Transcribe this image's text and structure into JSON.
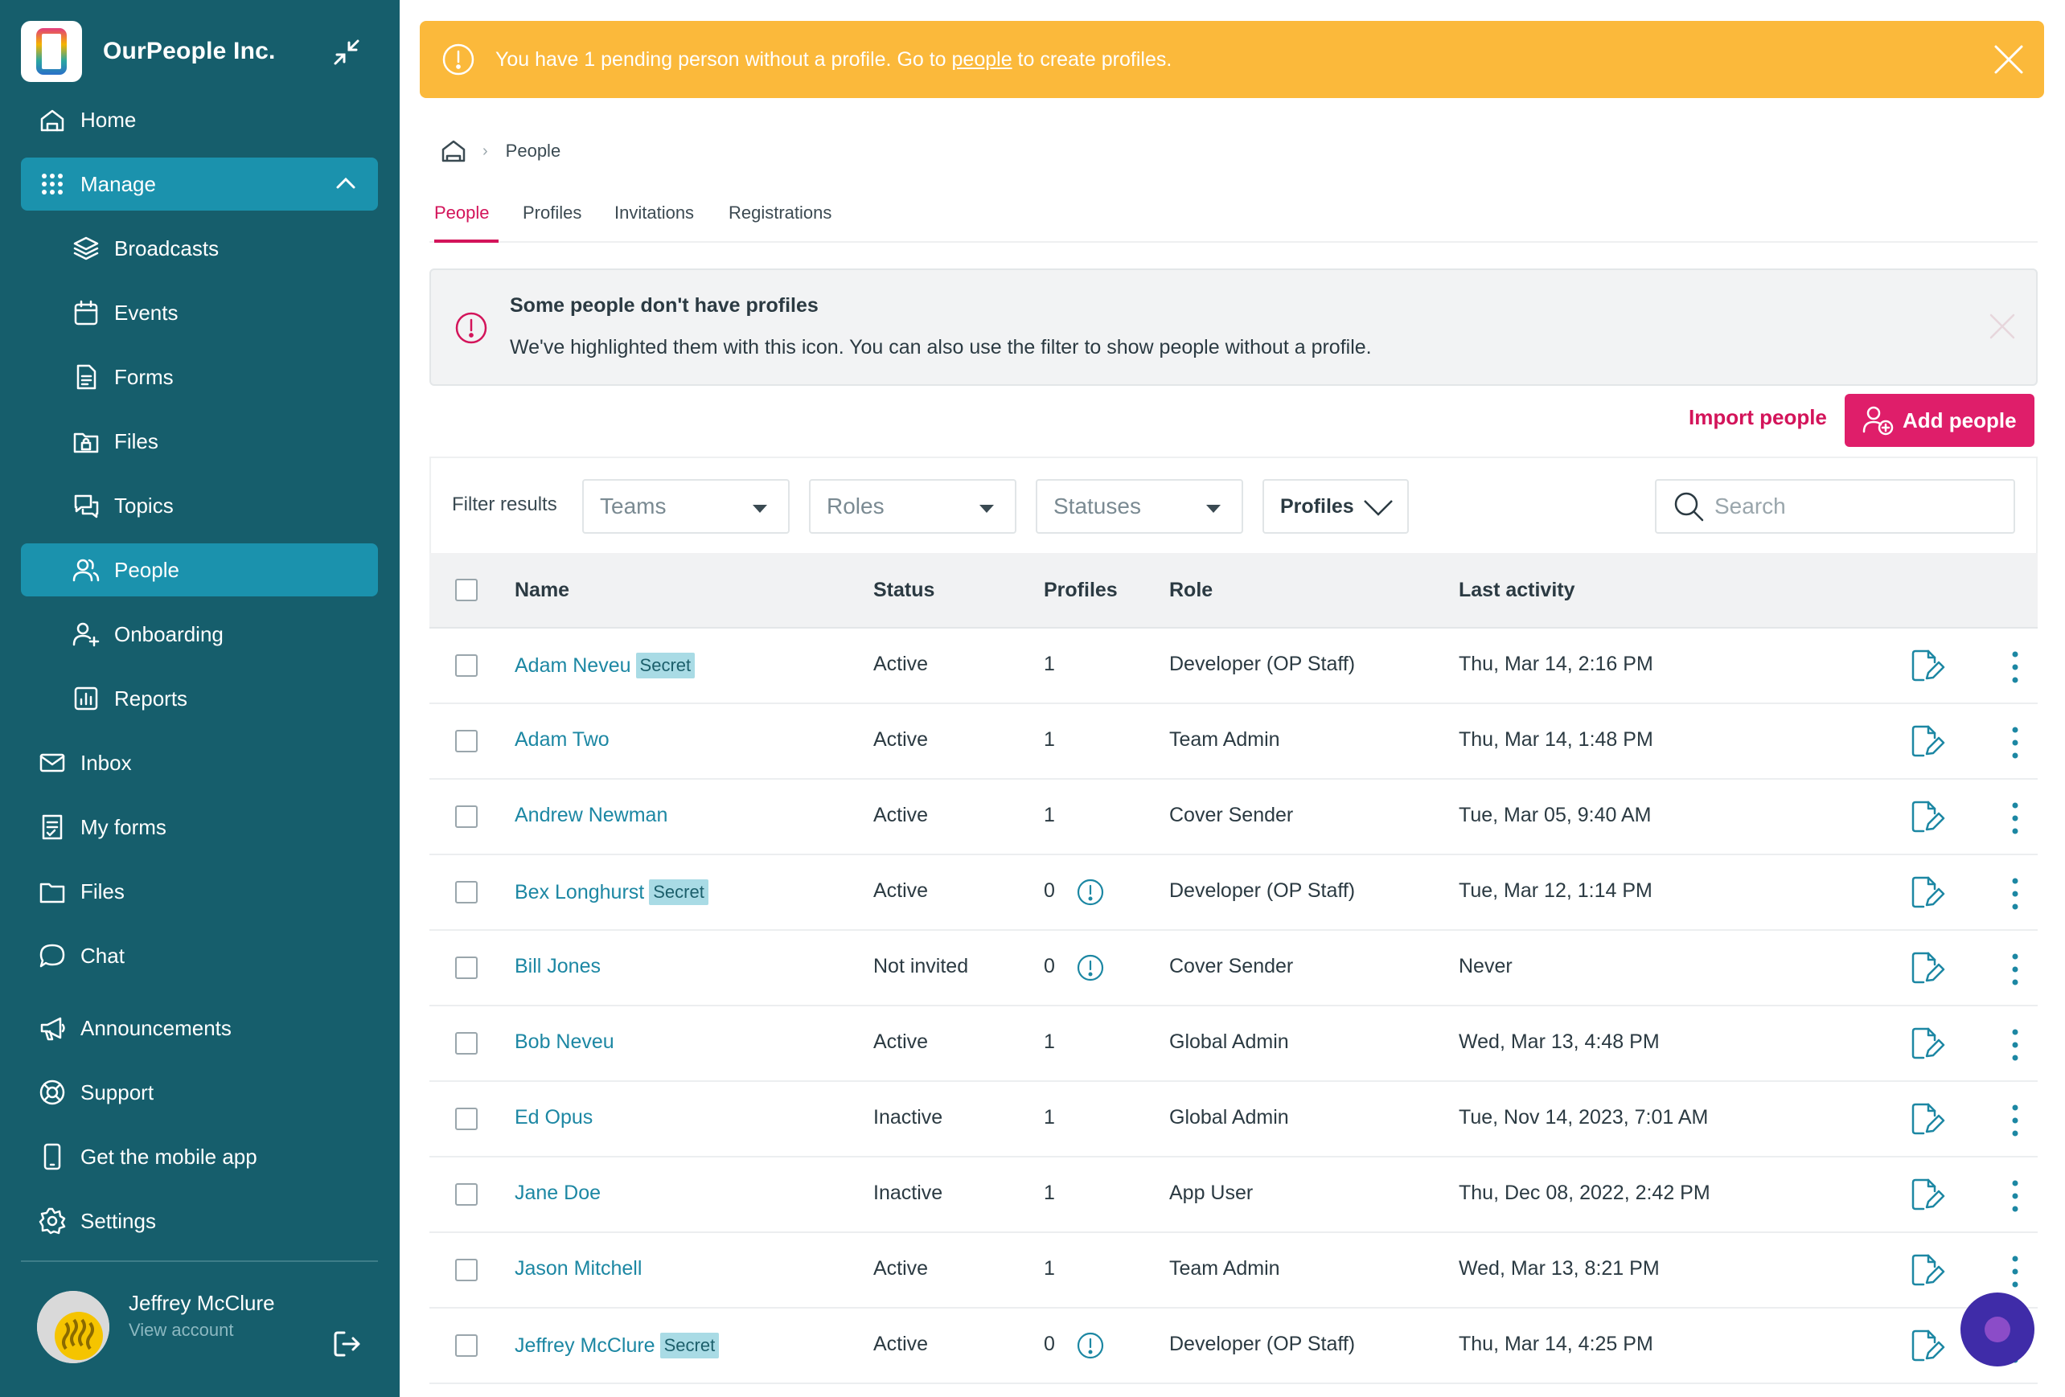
{
  "sidebar": {
    "org_name": "OurPeople Inc.",
    "nav": [
      {
        "label": "Home",
        "icon": "home-icon"
      },
      {
        "label": "Manage",
        "icon": "grid-icon"
      },
      {
        "label": "Broadcasts",
        "icon": "layers-icon"
      },
      {
        "label": "Events",
        "icon": "calendar-icon"
      },
      {
        "label": "Forms",
        "icon": "document-icon"
      },
      {
        "label": "Files",
        "icon": "folder-lock-icon"
      },
      {
        "label": "Topics",
        "icon": "chat-bubbles-icon"
      },
      {
        "label": "People",
        "icon": "people-icon"
      },
      {
        "label": "Onboarding",
        "icon": "user-plus-icon"
      },
      {
        "label": "Reports",
        "icon": "bar-chart-icon"
      },
      {
        "label": "Inbox",
        "icon": "mail-icon"
      },
      {
        "label": "My forms",
        "icon": "checklist-icon"
      },
      {
        "label": "Files",
        "icon": "folder-icon"
      },
      {
        "label": "Chat",
        "icon": "chat-icon"
      },
      {
        "label": "Announcements",
        "icon": "megaphone-icon"
      },
      {
        "label": "Support",
        "icon": "lifebuoy-icon"
      },
      {
        "label": "Get the mobile app",
        "icon": "phone-icon"
      },
      {
        "label": "Settings",
        "icon": "gear-icon"
      }
    ],
    "user": {
      "name": "Jeffrey McClure",
      "sub": "View account"
    }
  },
  "banner": {
    "text_before": "You have 1 pending person without a profile. Go to ",
    "link": "people",
    "text_after": " to create profiles."
  },
  "breadcrumb": {
    "current": "People"
  },
  "tabs": [
    "People",
    "Profiles",
    "Invitations",
    "Registrations"
  ],
  "alert": {
    "title": "Some people don't have profiles",
    "body": "We've highlighted them with this icon. You can also use the filter to show people without a profile."
  },
  "actions": {
    "import": "Import people",
    "add": "Add people"
  },
  "filters": {
    "label": "Filter results",
    "teams": "Teams",
    "roles": "Roles",
    "statuses": "Statuses",
    "profiles": "Profiles",
    "search_placeholder": "Search"
  },
  "table": {
    "headers": {
      "name": "Name",
      "status": "Status",
      "profiles": "Profiles",
      "role": "Role",
      "last_activity": "Last activity"
    },
    "rows": [
      {
        "name": "Adam Neveu",
        "secret": "Secret",
        "status": "Active",
        "profiles": "1",
        "warn": false,
        "role": "Developer (OP Staff)",
        "last": "Thu, Mar 14, 2:16 PM"
      },
      {
        "name": "Adam Two",
        "secret": "",
        "status": "Active",
        "profiles": "1",
        "warn": false,
        "role": "Team Admin",
        "last": "Thu, Mar 14, 1:48 PM"
      },
      {
        "name": "Andrew Newman",
        "secret": "",
        "status": "Active",
        "profiles": "1",
        "warn": false,
        "role": "Cover Sender",
        "last": "Tue, Mar 05, 9:40 AM"
      },
      {
        "name": "Bex Longhurst",
        "secret": "Secret",
        "status": "Active",
        "profiles": "0",
        "warn": true,
        "role": "Developer (OP Staff)",
        "last": "Tue, Mar 12, 1:14 PM"
      },
      {
        "name": "Bill Jones",
        "secret": "",
        "status": "Not invited",
        "profiles": "0",
        "warn": true,
        "role": "Cover Sender",
        "last": "Never"
      },
      {
        "name": "Bob Neveu",
        "secret": "",
        "status": "Active",
        "profiles": "1",
        "warn": false,
        "role": "Global Admin",
        "last": "Wed, Mar 13, 4:48 PM"
      },
      {
        "name": "Ed Opus",
        "secret": "",
        "status": "Inactive",
        "profiles": "1",
        "warn": false,
        "role": "Global Admin",
        "last": "Tue, Nov 14, 2023, 7:01 AM"
      },
      {
        "name": "Jane Doe",
        "secret": "",
        "status": "Inactive",
        "profiles": "1",
        "warn": false,
        "role": "App User",
        "last": "Thu, Dec 08, 2022, 2:42 PM"
      },
      {
        "name": "Jason Mitchell",
        "secret": "",
        "status": "Active",
        "profiles": "1",
        "warn": false,
        "role": "Team Admin",
        "last": "Wed, Mar 13, 8:21 PM"
      },
      {
        "name": "Jeffrey McClure",
        "secret": "Secret",
        "status": "Active",
        "profiles": "0",
        "warn": true,
        "role": "Developer (OP Staff)",
        "last": "Thu, Mar 14, 4:25 PM"
      }
    ]
  },
  "colors": {
    "sidebar": "#165e6c",
    "active_nav": "#1b92ad",
    "accent": "#d3145a",
    "banner": "#fbb93b",
    "link": "#1c87a3"
  }
}
